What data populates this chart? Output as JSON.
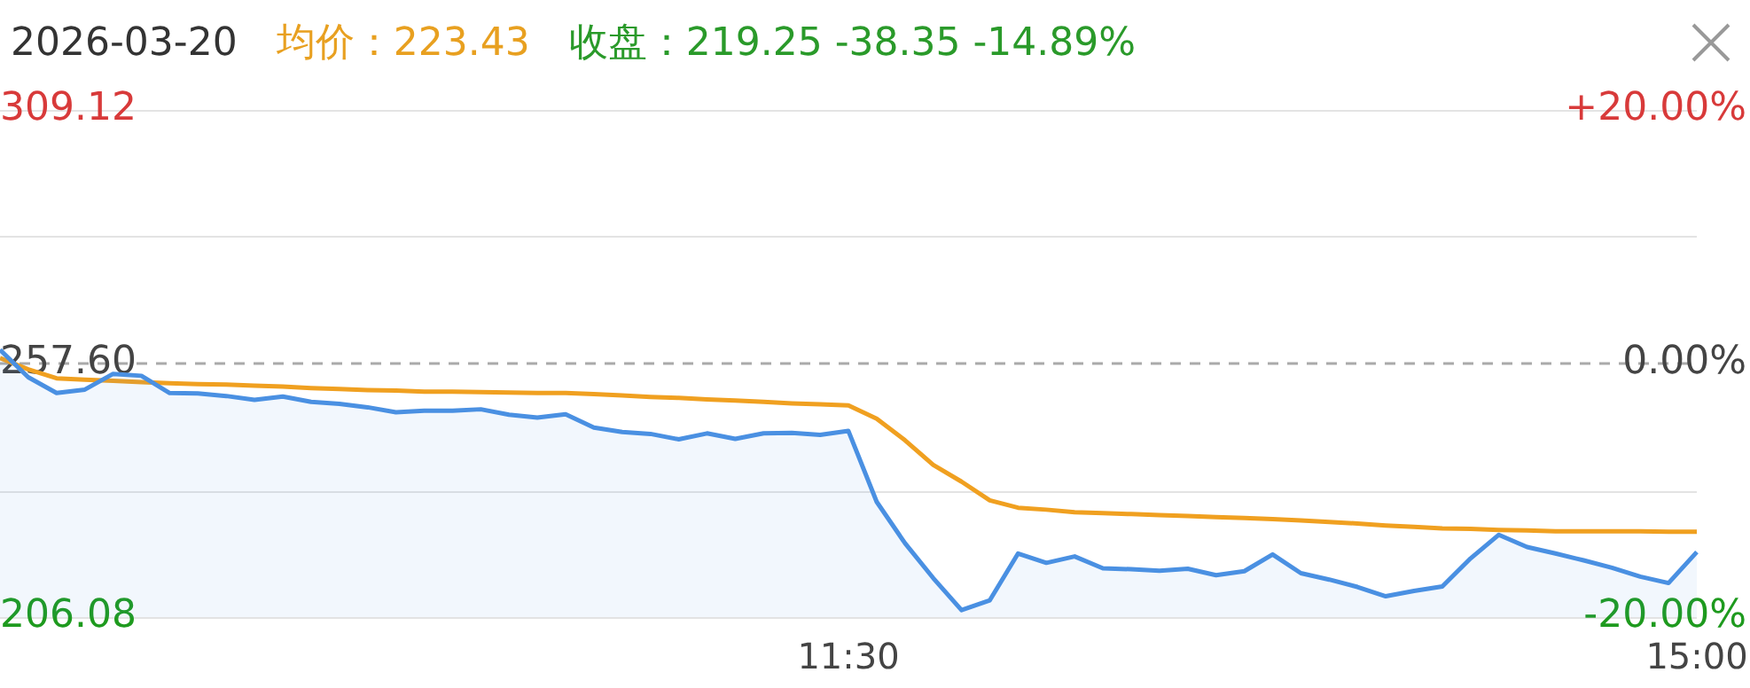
{
  "chart_data": {
    "type": "area",
    "title": "2026-03-20",
    "annotations": [
      "均价：223.43",
      "收盘：219.25 -38.35 -14.89%"
    ],
    "categories": [
      null,
      null,
      null,
      null,
      null,
      null,
      null,
      null,
      null,
      null,
      null,
      null,
      null,
      null,
      null,
      null,
      null,
      null,
      null,
      null,
      null,
      null,
      null,
      null,
      null,
      null,
      null,
      null,
      null,
      null,
      "11:30",
      null,
      null,
      null,
      null,
      null,
      null,
      null,
      null,
      null,
      null,
      null,
      null,
      null,
      null,
      null,
      null,
      null,
      null,
      null,
      null,
      null,
      null,
      null,
      null,
      null,
      null,
      null,
      null,
      null,
      "15:00"
    ],
    "series": [
      {
        "color": "#4a90e2",
        "values": [
          260.4,
          254.8,
          251.6,
          252.3,
          255.5,
          255.1,
          251.6,
          251.5,
          251.0,
          250.2,
          250.9,
          249.8,
          249.4,
          248.7,
          247.7,
          248.0,
          248.0,
          248.3,
          247.2,
          246.6,
          247.3,
          244.6,
          243.7,
          243.3,
          242.2,
          243.4,
          242.3,
          243.4,
          243.5,
          243.1,
          243.9,
          229.5,
          221.1,
          214.0,
          207.5,
          209.5,
          219.0,
          217.1,
          218.4,
          216.0,
          215.8,
          215.5,
          215.9,
          214.6,
          215.4,
          218.8,
          215.0,
          213.7,
          212.2,
          210.3,
          211.4,
          212.3,
          218.0,
          222.8,
          220.3,
          219.0,
          217.6,
          216.1,
          214.3,
          213.0,
          219.3
        ]
      },
      {
        "type": "line",
        "color": "#f0a020",
        "values": [
          258.7,
          256.4,
          254.6,
          254.3,
          254.1,
          253.8,
          253.6,
          253.4,
          253.3,
          253.1,
          252.9,
          252.6,
          252.4,
          252.2,
          252.1,
          251.9,
          251.9,
          251.8,
          251.7,
          251.6,
          251.6,
          251.4,
          251.1,
          250.8,
          250.6,
          250.3,
          250.1,
          249.8,
          249.5,
          249.3,
          249.1,
          246.4,
          242.0,
          237.0,
          233.6,
          229.8,
          228.3,
          227.9,
          227.4,
          227.2,
          227.0,
          226.8,
          226.6,
          226.4,
          226.2,
          226.0,
          225.7,
          225.4,
          225.1,
          224.7,
          224.4,
          224.1,
          224.0,
          223.8,
          223.7,
          223.5,
          223.5,
          223.5,
          223.5,
          223.4,
          223.4
        ]
      }
    ],
    "ylim": [
      206.08,
      309.12
    ],
    "yticks": [
      {
        "value": 206.08,
        "label": "206.08"
      },
      {
        "value": 231.84,
        "label": null
      },
      {
        "value": 257.6,
        "label": "257.60"
      },
      {
        "value": 283.36,
        "label": null
      },
      {
        "value": 309.12,
        "label": "309.12"
      }
    ],
    "y2lim": [
      -20,
      20
    ],
    "y2ticks": [
      {
        "value": -20,
        "label": "-20.00%"
      },
      {
        "value": 0,
        "label": "0.00%"
      },
      {
        "value": 20,
        "label": "+20.00%"
      }
    ],
    "ref_lines": [
      {
        "axis": "y",
        "value": 257.6,
        "color": "#aaaaaa",
        "line_style": "dashed"
      }
    ],
    "grid": "y",
    "legend": false,
    "marker": "none"
  }
}
